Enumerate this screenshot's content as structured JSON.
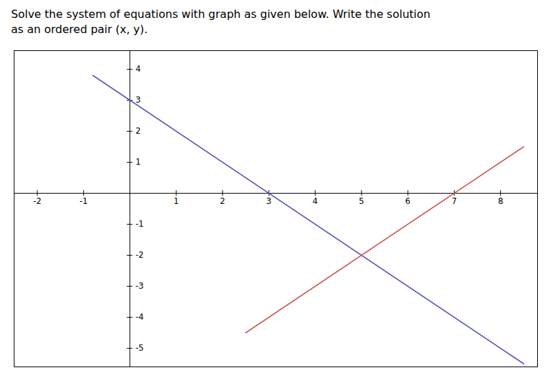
{
  "chart_data": {
    "type": "line",
    "title": "Solve the system of equations with graph as given below. Write the solution\nas an ordered pair (x, y).",
    "xlim": [
      -2.5,
      8.8
    ],
    "ylim": [
      -5.6,
      4.6
    ],
    "xticks": [
      -2,
      -1,
      1,
      2,
      3,
      4,
      5,
      6,
      7,
      8
    ],
    "yticks": [
      -5,
      -4,
      -3,
      -2,
      -1,
      1,
      2,
      3,
      4
    ],
    "series": [
      {
        "color": "#5555bb",
        "x": [
          -0.8,
          8.5
        ],
        "values": [
          3.8,
          -5.5
        ]
      },
      {
        "color": "#cc5555",
        "x": [
          2.5,
          8.5
        ],
        "values": [
          -4.5,
          1.5
        ]
      }
    ]
  }
}
